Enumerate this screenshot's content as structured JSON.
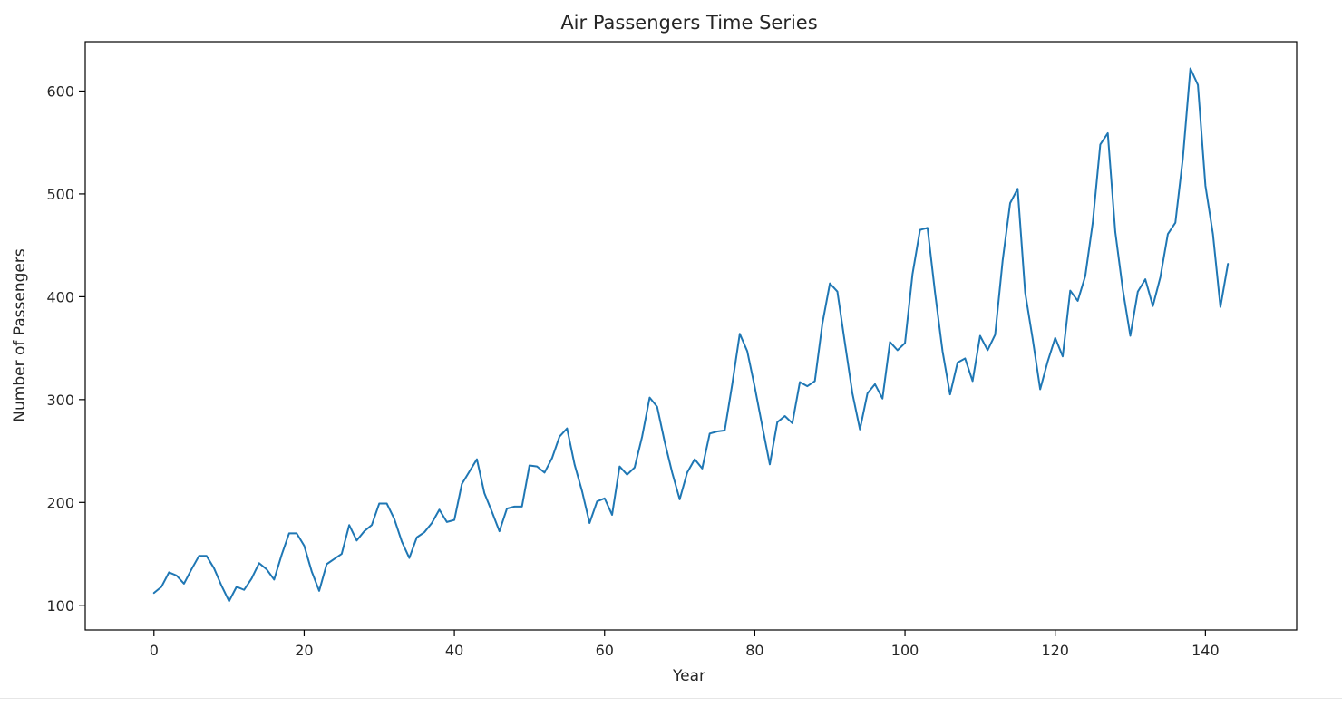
{
  "chart_data": {
    "type": "line",
    "title": "Air Passengers Time Series",
    "xlabel": "Year",
    "ylabel": "Number of Passengers",
    "xlim": [
      -9.15,
      152.15
    ],
    "ylim": [
      76.0,
      648.0
    ],
    "xticks": [
      0,
      20,
      40,
      60,
      80,
      100,
      120,
      140
    ],
    "yticks": [
      100,
      200,
      300,
      400,
      500,
      600
    ],
    "grid": false,
    "line_color": "#1f77b4",
    "series": [
      {
        "values": [
          112,
          118,
          132,
          129,
          121,
          135,
          148,
          148,
          136,
          119,
          104,
          118,
          115,
          126,
          141,
          135,
          125,
          149,
          170,
          170,
          158,
          133,
          114,
          140,
          145,
          150,
          178,
          163,
          172,
          178,
          199,
          199,
          184,
          162,
          146,
          166,
          171,
          180,
          193,
          181,
          183,
          218,
          230,
          242,
          209,
          191,
          172,
          194,
          196,
          196,
          236,
          235,
          229,
          243,
          264,
          272,
          237,
          211,
          180,
          201,
          204,
          188,
          235,
          227,
          234,
          264,
          302,
          293,
          259,
          229,
          203,
          229,
          242,
          233,
          267,
          269,
          270,
          315,
          364,
          347,
          312,
          274,
          237,
          278,
          284,
          277,
          317,
          313,
          318,
          374,
          413,
          405,
          355,
          306,
          271,
          306,
          315,
          301,
          356,
          348,
          355,
          422,
          465,
          467,
          404,
          347,
          305,
          336,
          340,
          318,
          362,
          348,
          363,
          435,
          491,
          505,
          404,
          359,
          310,
          337,
          360,
          342,
          406,
          396,
          420,
          472,
          548,
          559,
          463,
          407,
          362,
          405,
          417,
          391,
          419,
          461,
          472,
          535,
          622,
          606,
          508,
          461,
          390,
          432
        ]
      }
    ]
  }
}
